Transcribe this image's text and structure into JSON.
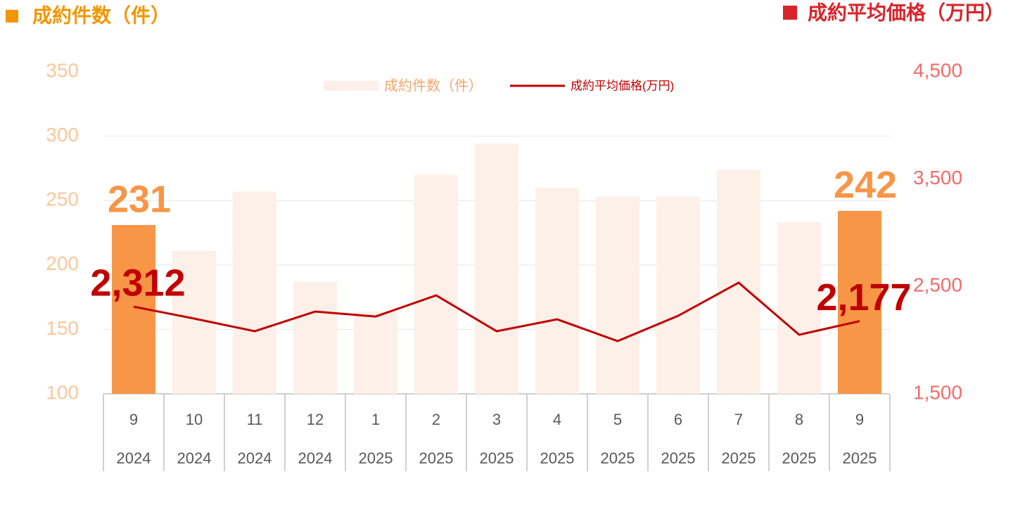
{
  "chart_data": {
    "type": "combo",
    "left_title": "成約件数（件）",
    "left_title_color": "#f29600",
    "right_title": "成約平均価格（万円）",
    "right_title_color": "#d9232a",
    "categories": [
      "9",
      "10",
      "11",
      "12",
      "1",
      "2",
      "3",
      "4",
      "5",
      "6",
      "7",
      "8",
      "9"
    ],
    "years": [
      "2024",
      "2024",
      "2024",
      "2024",
      "2025",
      "2025",
      "2025",
      "2025",
      "2025",
      "2025",
      "2025",
      "2025",
      "2025"
    ],
    "series": [
      {
        "name": "成約件数（件）",
        "type": "bar",
        "color": "#fdf0e8",
        "colors": [
          "#f79646",
          "#fdf0e8",
          "#fdf0e8",
          "#fdf0e8",
          "#fdf0e8",
          "#fdf0e8",
          "#fdf0e8",
          "#fdf0e8",
          "#fdf0e8",
          "#fdf0e8",
          "#fdf0e8",
          "#fdf0e8",
          "#f79646"
        ],
        "values": [
          231,
          211,
          257,
          187,
          164,
          270,
          294,
          260,
          253,
          253,
          274,
          233,
          242
        ],
        "value_labels": [
          "231",
          null,
          null,
          null,
          null,
          null,
          null,
          null,
          null,
          null,
          null,
          null,
          "242"
        ],
        "label_color": "#f79646"
      },
      {
        "name": "成約平均価格(万円)",
        "type": "line",
        "axis": "y2",
        "color": "#c00000",
        "values": [
          2312,
          2201,
          2083,
          2266,
          2220,
          2417,
          2083,
          2194,
          1991,
          2227,
          2535,
          2050,
          2177
        ],
        "value_labels": [
          "2,312",
          null,
          null,
          null,
          null,
          null,
          null,
          null,
          null,
          null,
          null,
          null,
          "2,177"
        ],
        "label_color": "#c00000"
      }
    ],
    "ylim": [
      100,
      350
    ],
    "yticks": [
      100,
      150,
      200,
      250,
      300,
      350
    ],
    "ytick_color": "#fbc79a",
    "y2lim": [
      1500,
      4500
    ],
    "y2ticks": [
      {
        "value": 1500,
        "label": "1,500"
      },
      {
        "value": 2500,
        "label": "2,500"
      },
      {
        "value": 3500,
        "label": "3,500"
      },
      {
        "value": 4500,
        "label": "4,500"
      }
    ],
    "y2tick_color": "#f26b6b",
    "grid": true
  }
}
